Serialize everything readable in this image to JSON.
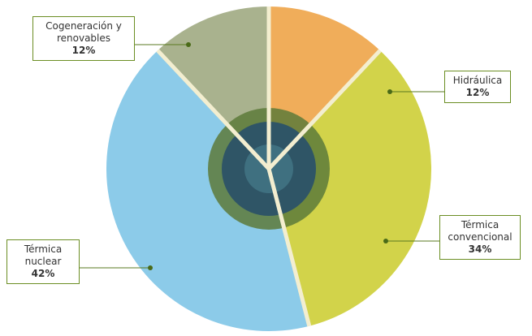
{
  "chart_data": {
    "type": "pie",
    "categories": [
      "Hidráulica",
      "Térmica convencional",
      "Térmica nuclear",
      "Cogeneración y renovables"
    ],
    "values": [
      12,
      34,
      42,
      12
    ],
    "value_labels": [
      "12%",
      "34%",
      "42%",
      "12%"
    ],
    "colors": [
      "#f0ad5a",
      "#d2d34a",
      "#8ccbe9",
      "#a9b28e"
    ]
  }
}
